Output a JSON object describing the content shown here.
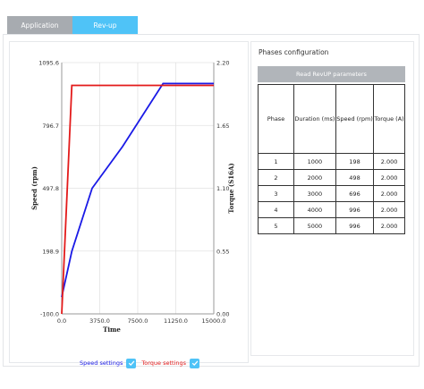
{
  "tabs": [
    {
      "label": "Application",
      "active": false
    },
    {
      "label": "Rev-up",
      "active": true
    }
  ],
  "colors": {
    "accent": "#4fc3f7",
    "tab_inactive": "#a7abb0",
    "speed_series": "#1a1ae6",
    "torque_series": "#e31a1a",
    "button": "#b1b5ba"
  },
  "chart_data": {
    "type": "line",
    "xlabel": "Time",
    "ylabel": "Speed (rpm)",
    "y2label": "Torque (S16A)",
    "xlim": [
      0,
      15000
    ],
    "ylim": [
      -100.0,
      1095.6
    ],
    "y2lim": [
      0.0,
      2.2
    ],
    "x_ticks": [
      "0.0",
      "3750.0",
      "7500.0",
      "11250.0",
      "15000.0"
    ],
    "y_ticks": [
      "-100.0",
      "198.9",
      "497.8",
      "796.7",
      "1095.6"
    ],
    "y2_ticks": [
      "0.00",
      "0.55",
      "1.10",
      "1.65",
      "2.20"
    ],
    "grid": true,
    "series": [
      {
        "name": "Speed settings",
        "axis": "left",
        "x": [
          0,
          1000,
          3000,
          6000,
          10000,
          15000
        ],
        "y": [
          -20,
          198,
          498,
          696,
          996,
          996
        ]
      },
      {
        "name": "Torque settings",
        "axis": "right",
        "x": [
          0,
          1000,
          3000,
          6000,
          10000,
          15000
        ],
        "y": [
          0.0,
          2.0,
          2.0,
          2.0,
          2.0,
          2.0
        ]
      }
    ]
  },
  "legend": {
    "speed_label": "Speed settings",
    "torque_label": "Torque settings"
  },
  "phases": {
    "title": "Phases configuration",
    "read_button": "Read RevUP parameters",
    "columns": [
      "Phase",
      "Duration (ms)",
      "Speed (rpm)",
      "Torque (A)"
    ],
    "rows": [
      [
        "1",
        "1000",
        "198",
        "2.000"
      ],
      [
        "2",
        "2000",
        "498",
        "2.000"
      ],
      [
        "3",
        "3000",
        "696",
        "2.000"
      ],
      [
        "4",
        "4000",
        "996",
        "2.000"
      ],
      [
        "5",
        "5000",
        "996",
        "2.000"
      ]
    ]
  }
}
